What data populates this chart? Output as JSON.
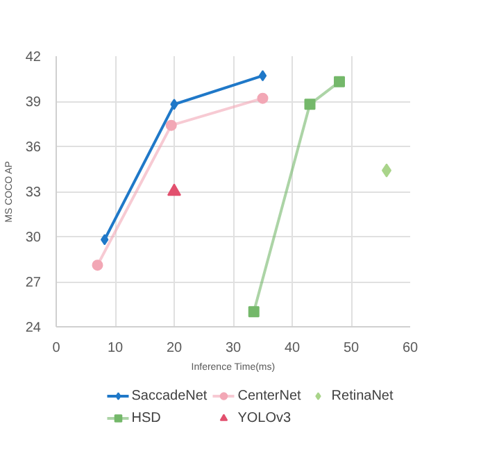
{
  "chart_data": {
    "type": "line",
    "xlabel": "Inference Time(ms)",
    "ylabel": "MS COCO AP",
    "xlim": [
      0,
      60
    ],
    "xticks": [
      0,
      10,
      20,
      30,
      40,
      50,
      60
    ],
    "ylim": [
      24,
      42
    ],
    "yticks": [
      24,
      27,
      30,
      33,
      36,
      39,
      42
    ],
    "grid": true,
    "legend": "bottom",
    "series": [
      {
        "name": "SaccadeNet",
        "color": "#1f78c8",
        "marker": "diamond",
        "x": [
          8.2,
          20,
          35
        ],
        "values": [
          29.8,
          38.8,
          40.7
        ]
      },
      {
        "name": "CenterNet",
        "color": "#f2a7b5",
        "marker": "circle",
        "x": [
          7,
          19.5,
          35
        ],
        "values": [
          28.1,
          37.4,
          39.2
        ]
      },
      {
        "name": "RetinaNet",
        "type": "scatter",
        "color": "#a9d48a",
        "marker": "diamond",
        "x": [
          56
        ],
        "values": [
          34.4
        ]
      },
      {
        "name": "HSD",
        "color": "#74b86a",
        "marker": "square",
        "x": [
          33.5,
          43,
          48
        ],
        "values": [
          25.0,
          38.8,
          40.3
        ]
      },
      {
        "name": "YOLOv3",
        "type": "scatter",
        "color": "#e2506e",
        "marker": "triangle",
        "x": [
          20
        ],
        "values": [
          33.0
        ]
      }
    ]
  }
}
